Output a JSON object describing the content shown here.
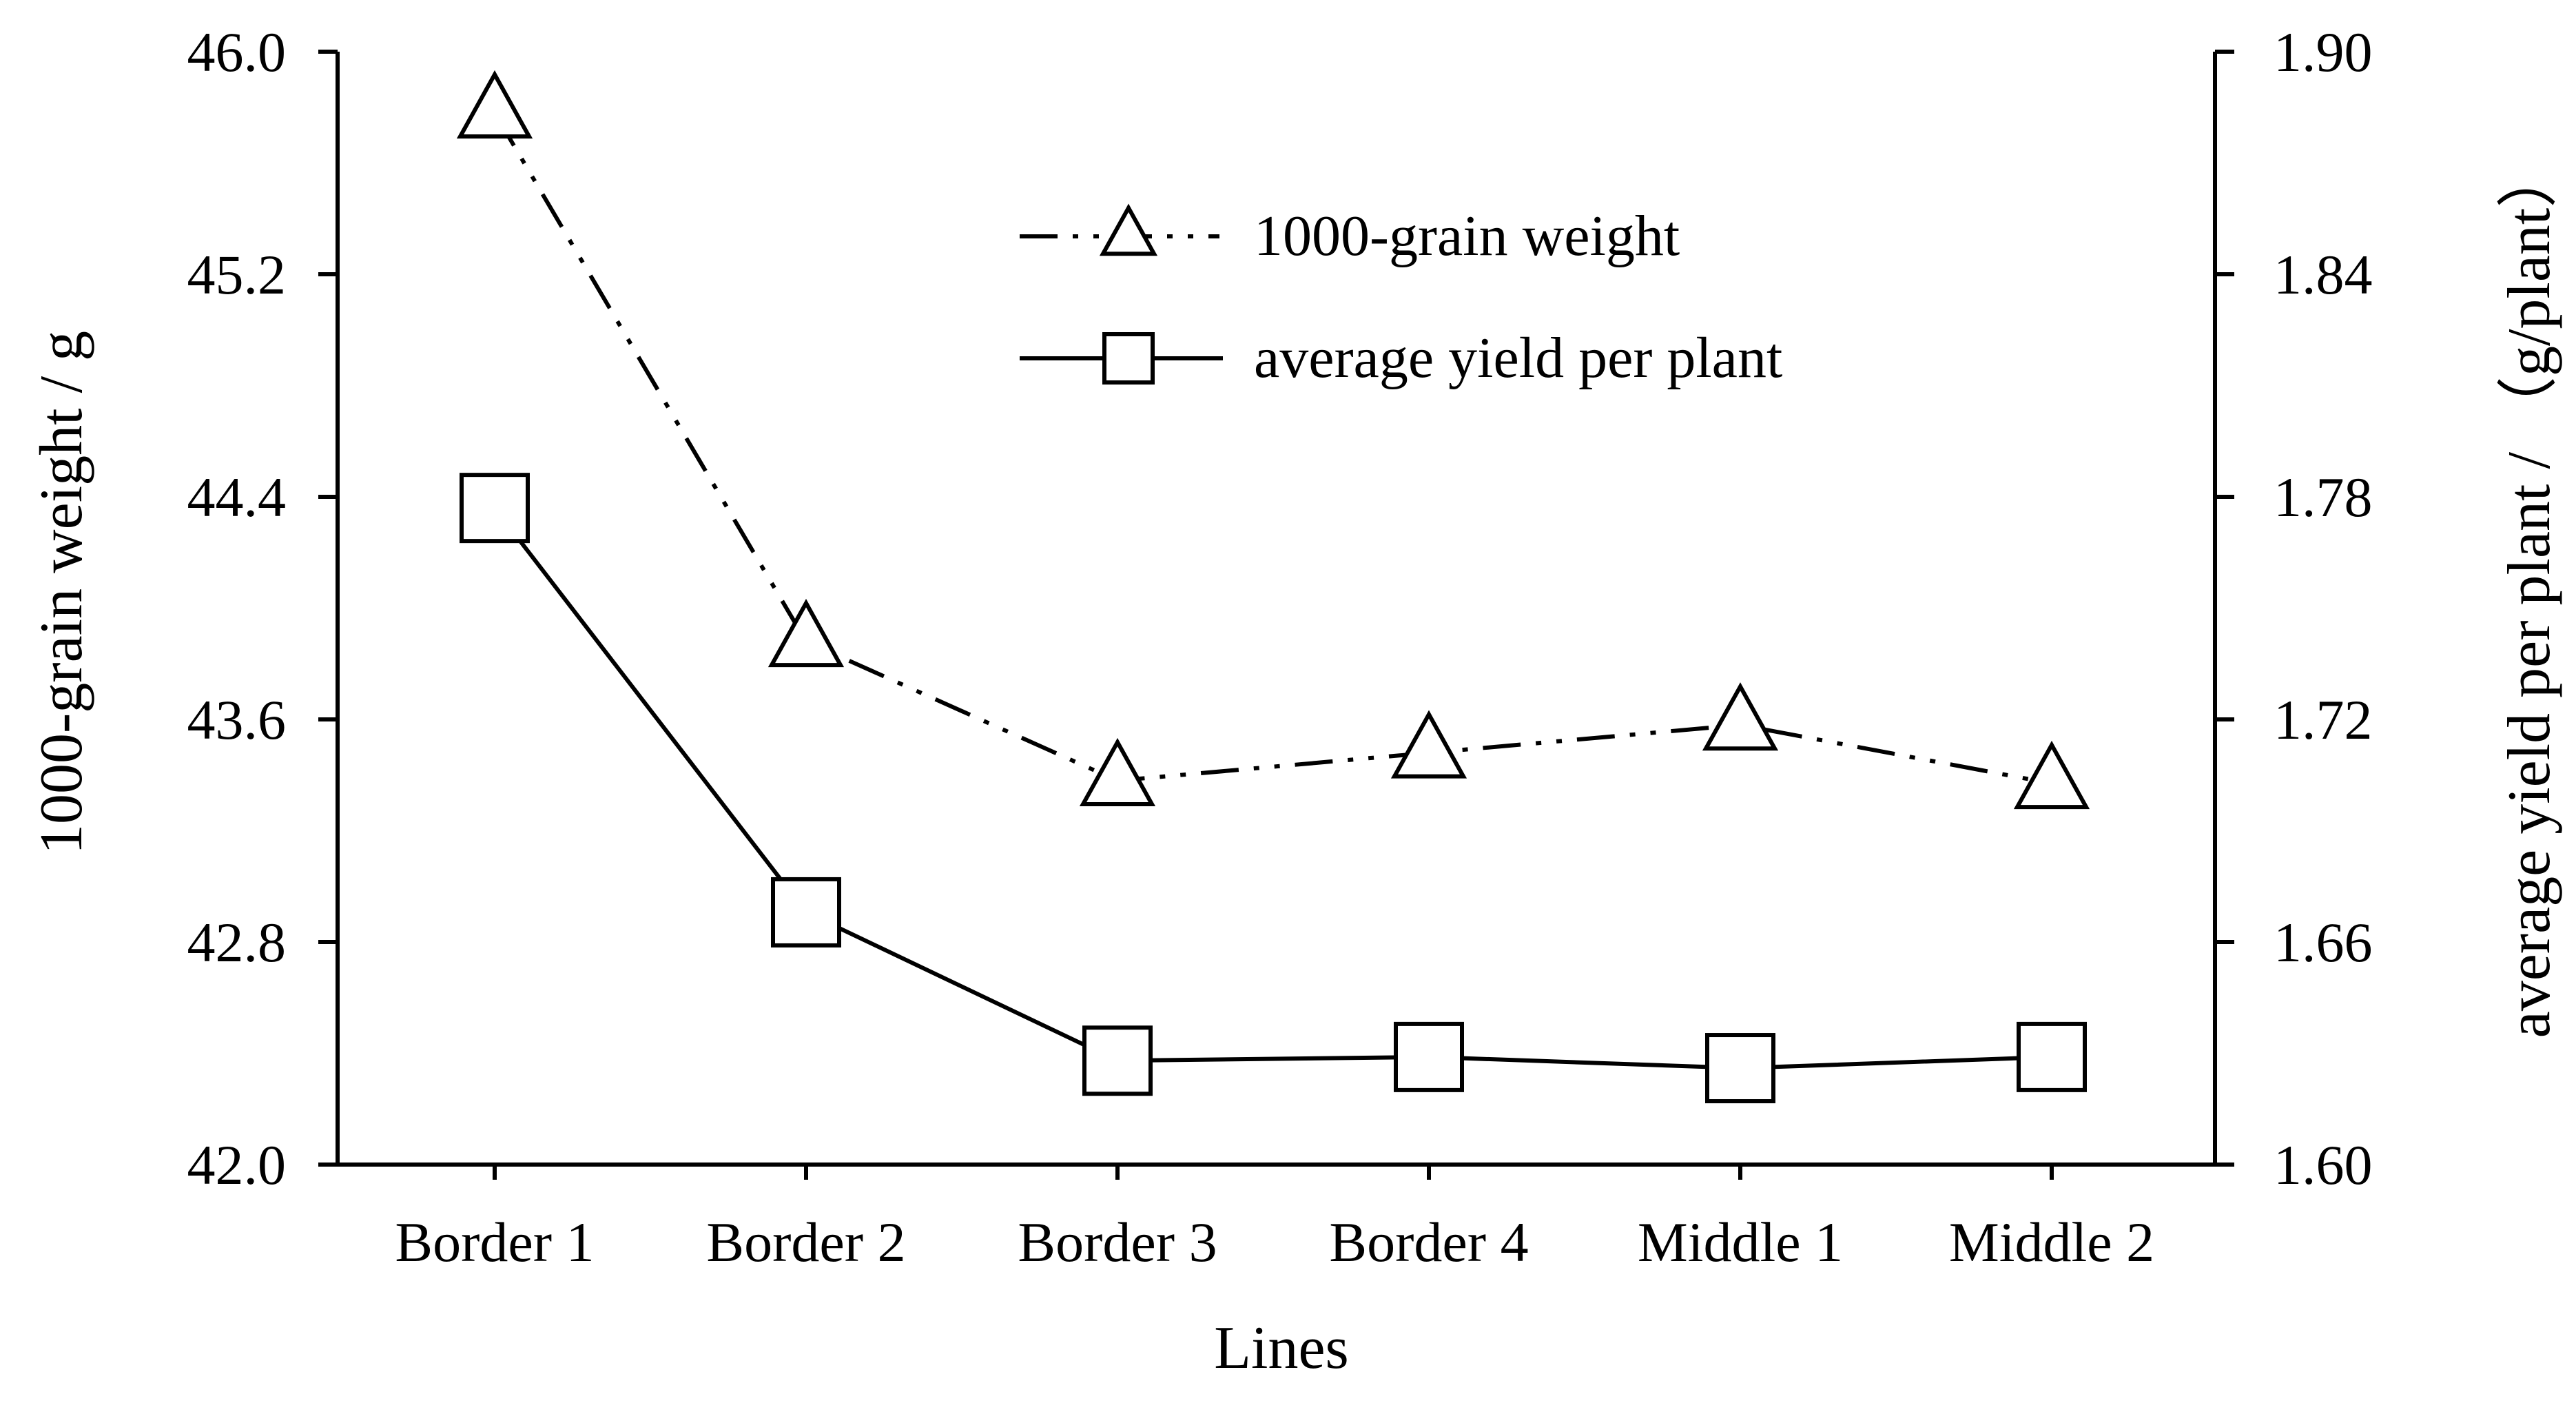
{
  "chart_data": {
    "type": "line",
    "categories": [
      "Border 1",
      "Border 2",
      "Border 3",
      "Border 4",
      "Middle 1",
      "Middle 2"
    ],
    "xlabel": "Lines",
    "ylabel_left": "1000-grain weight / g",
    "ylabel_right": "average yield per plant / （g/plant）",
    "y_left": {
      "range": [
        42.0,
        46.0
      ],
      "ticks": [
        "42.0",
        "42.8",
        "43.6",
        "44.4",
        "45.2",
        "46.0"
      ]
    },
    "y_right": {
      "range": [
        1.6,
        1.9
      ],
      "ticks": [
        "1.60",
        "1.66",
        "1.72",
        "1.78",
        "1.84",
        "1.90"
      ]
    },
    "series": [
      {
        "name": "1000-grain weight",
        "axis": "left",
        "marker": "triangle",
        "line_style": "dash-dot-dot",
        "values": [
          45.78,
          43.88,
          43.38,
          43.48,
          43.58,
          43.37
        ]
      },
      {
        "name": "average yield per plant",
        "axis": "right",
        "marker": "square",
        "line_style": "solid",
        "values": [
          1.777,
          1.668,
          1.628,
          1.629,
          1.626,
          1.629
        ]
      }
    ],
    "legend": {
      "position": "top-center",
      "entries": [
        "1000-grain weight",
        "average yield per plant"
      ]
    },
    "grid": false,
    "colors": {
      "line": "#000000",
      "background": "#ffffff"
    }
  }
}
